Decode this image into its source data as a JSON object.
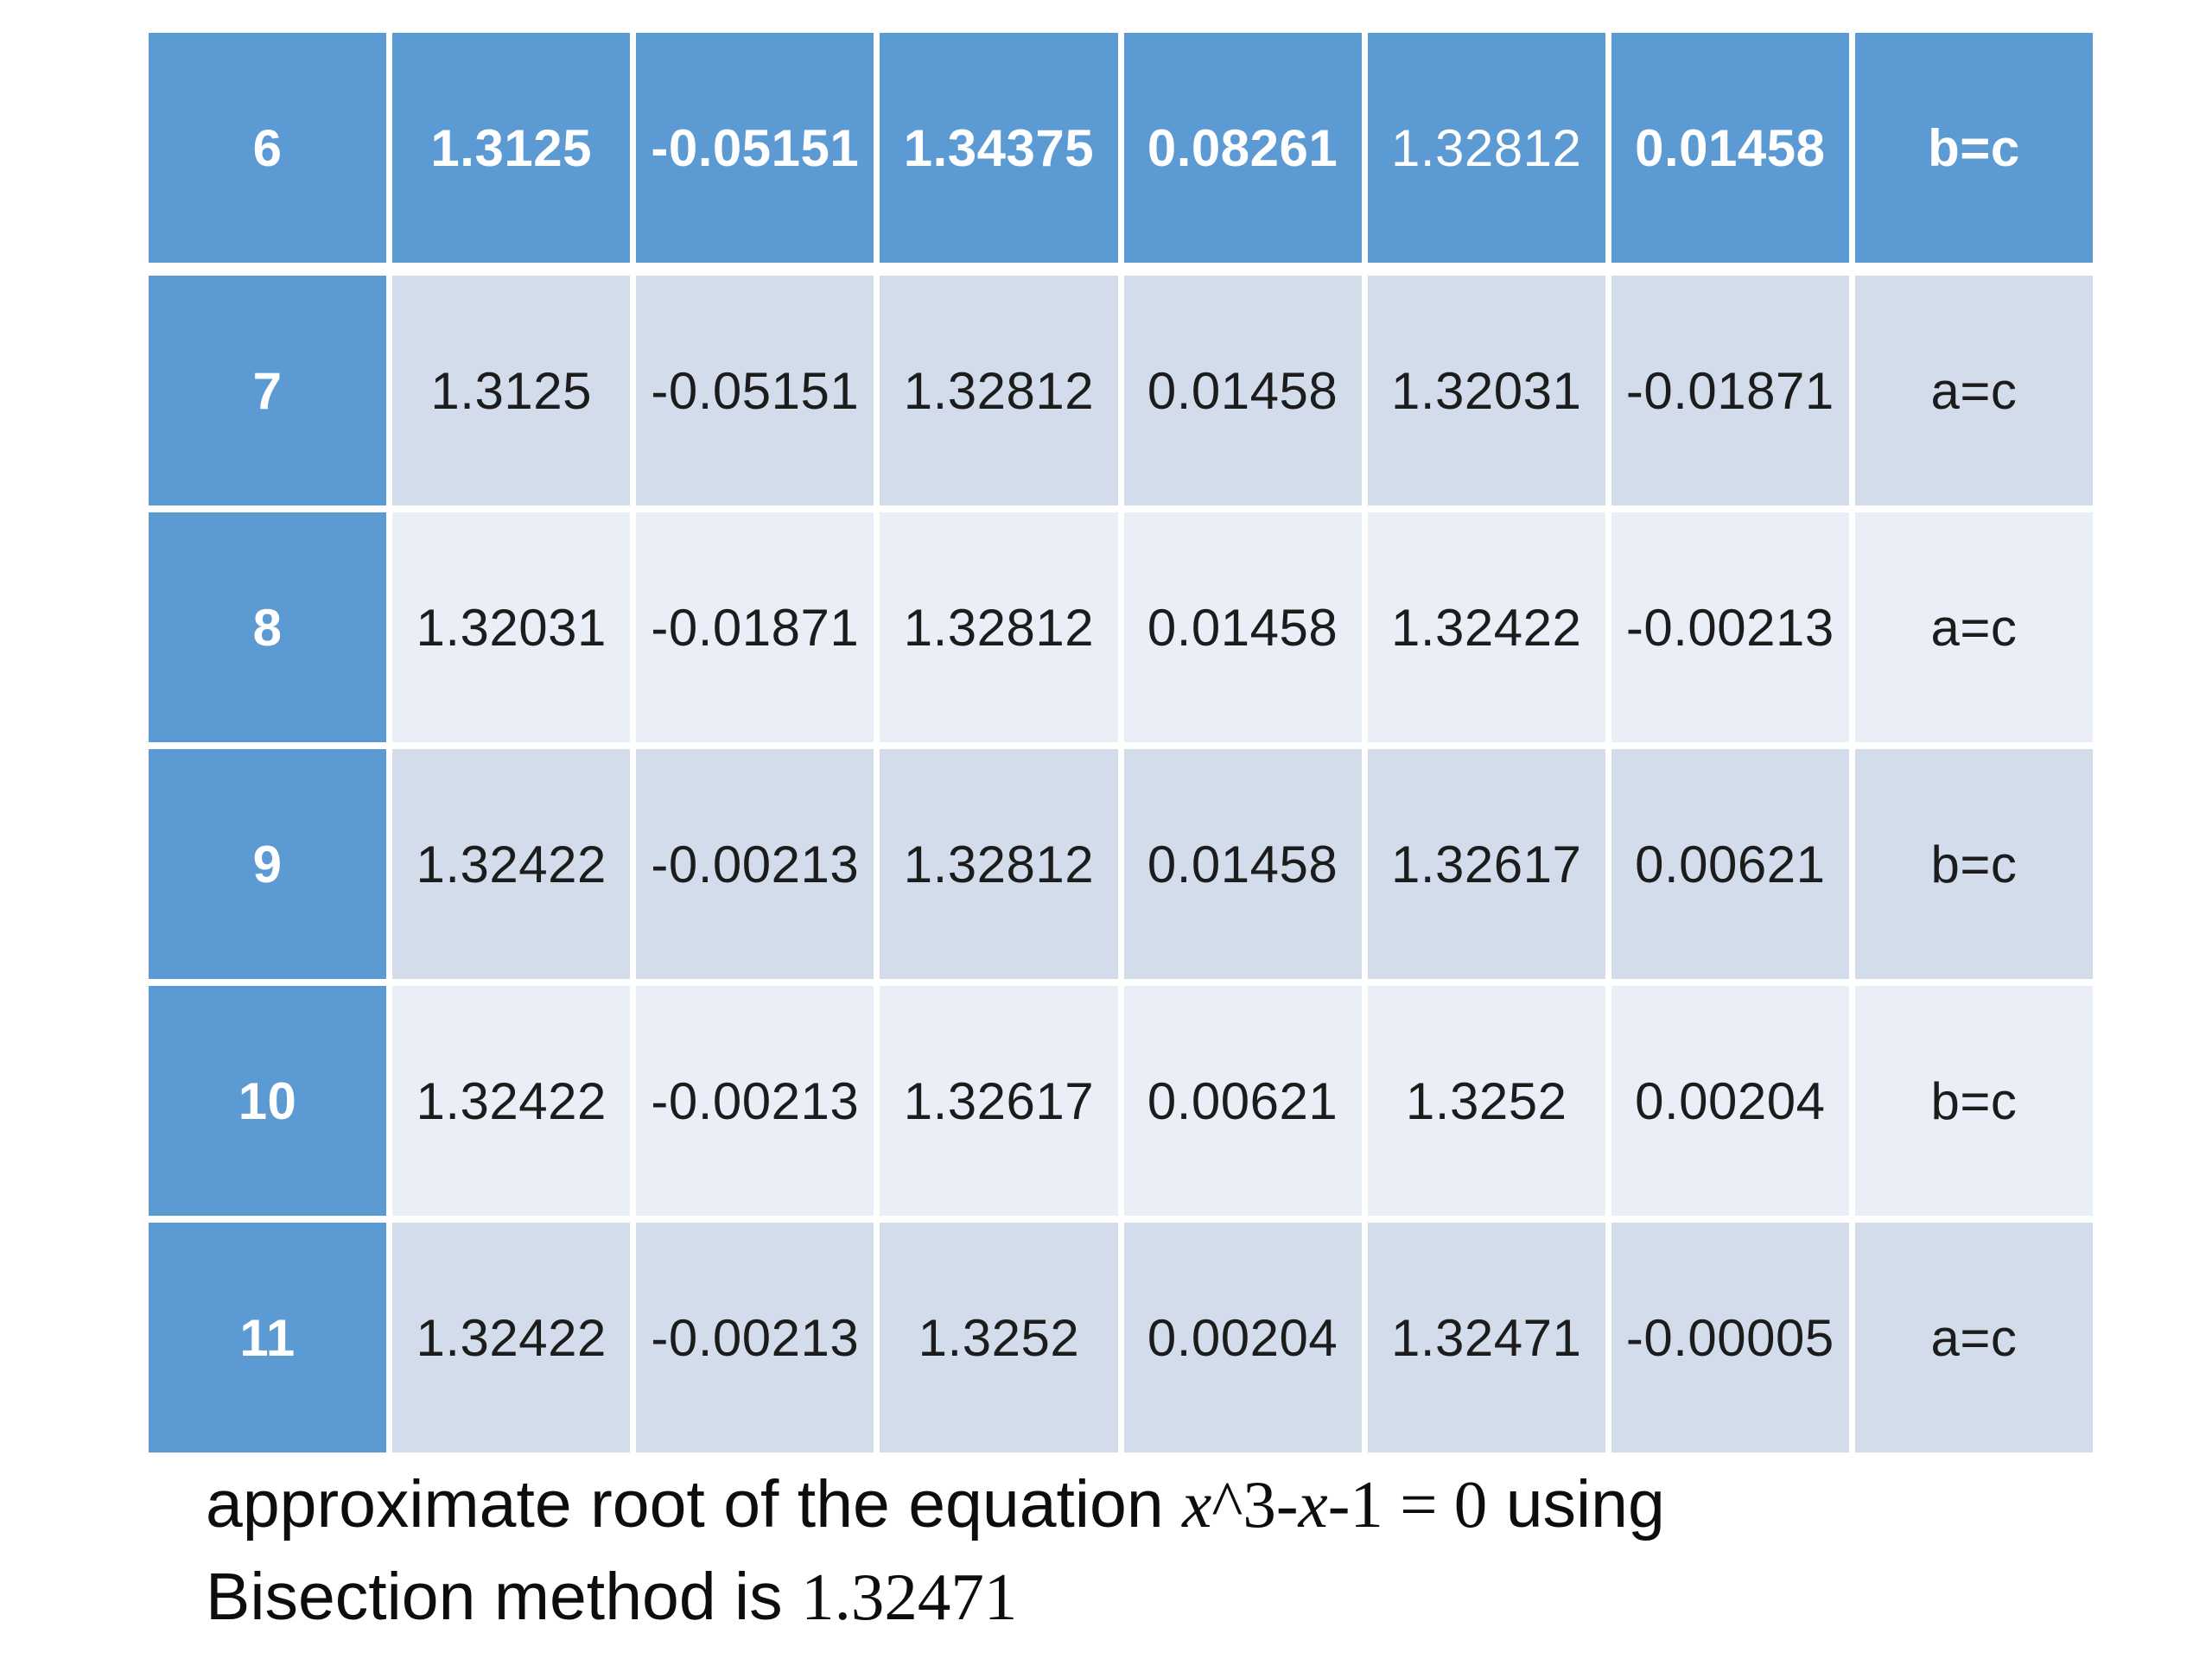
{
  "colors": {
    "header_blue": "#5b9ad3",
    "band_dark": "#d2dcea",
    "band_light": "#eaeef6",
    "header_text": "#ffffff",
    "body_text": "#1c1c1c",
    "caption_text": "#0d0d0d"
  },
  "table": {
    "header_row": {
      "cells": [
        "6",
        "1.3125",
        "-0.05151",
        "1.34375",
        "0.08261",
        "1.32812",
        "0.01458",
        "b=c"
      ]
    },
    "rows": [
      {
        "iteration": "7",
        "cells": [
          "1.3125",
          "-0.05151",
          "1.32812",
          "0.01458",
          "1.32031",
          "-0.01871",
          "a=c"
        ]
      },
      {
        "iteration": "8",
        "cells": [
          "1.32031",
          "-0.01871",
          "1.32812",
          "0.01458",
          "1.32422",
          "-0.00213",
          "a=c"
        ]
      },
      {
        "iteration": "9",
        "cells": [
          "1.32422",
          "-0.00213",
          "1.32812",
          "0.01458",
          "1.32617",
          "0.00621",
          "b=c"
        ]
      },
      {
        "iteration": "10",
        "cells": [
          "1.32422",
          "-0.00213",
          "1.32617",
          "0.00621",
          "1.3252",
          "0.00204",
          "b=c"
        ]
      },
      {
        "iteration": "11",
        "cells": [
          "1.32422",
          "-0.00213",
          "1.3252",
          "0.00204",
          "1.32471",
          "-0.00005",
          "a=c"
        ]
      }
    ]
  },
  "caption": {
    "line1_prefix": "approximate root of the equation ",
    "eq_x1": "x",
    "eq_mid": "^3-",
    "eq_x2": "x",
    "eq_tail": "-1 = 0",
    "line1_suffix": " using",
    "line2_prefix": "Bisection method is ",
    "root_value": "1.32471"
  }
}
